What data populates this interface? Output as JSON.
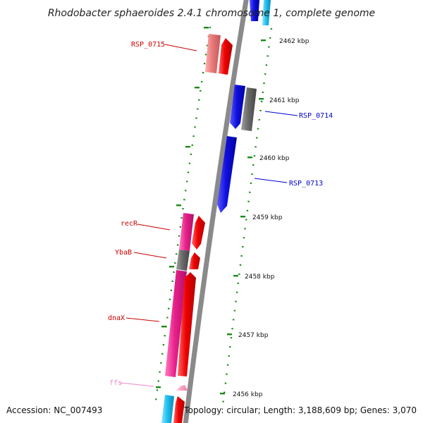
{
  "title": "Rhodobacter sphaeroides 2.4.1 chromosome 1, complete genome",
  "footer": {
    "accession": "Accession: NC_007493",
    "topology": "Topology: circular; Length: 3,188,609 bp; Genes: 3,070"
  },
  "ticks": [
    {
      "label": "2462 kbp"
    },
    {
      "label": "2461 kbp"
    },
    {
      "label": "2460 kbp"
    },
    {
      "label": "2459 kbp"
    },
    {
      "label": "2458 kbp"
    },
    {
      "label": "2457 kbp"
    },
    {
      "label": "2456 kbp"
    }
  ],
  "genes": [
    {
      "label": "RSP_0715",
      "color": "#cc0000"
    },
    {
      "label": "RSP_0714",
      "color": "#0000cc"
    },
    {
      "label": "RSP_0713",
      "color": "#0000cc"
    },
    {
      "label": "recR",
      "color": "#cc0000"
    },
    {
      "label": "YbaB",
      "color": "#cc0000"
    },
    {
      "label": "dnaX",
      "color": "#cc0000"
    },
    {
      "label": "ffs",
      "color": "#ee88cc"
    }
  ],
  "colors": {
    "backbone": "#8a8a8a",
    "forward": "#ee0000",
    "reverse": "#1010dd",
    "gray_feature": "#6a6a6a",
    "pink_feature": "#e8208a",
    "light_pink": "#f48fb1",
    "cyan_feature": "#22c0ee",
    "salmon_feature": "#e87a7a",
    "tick_green": "#1a8a1a"
  }
}
